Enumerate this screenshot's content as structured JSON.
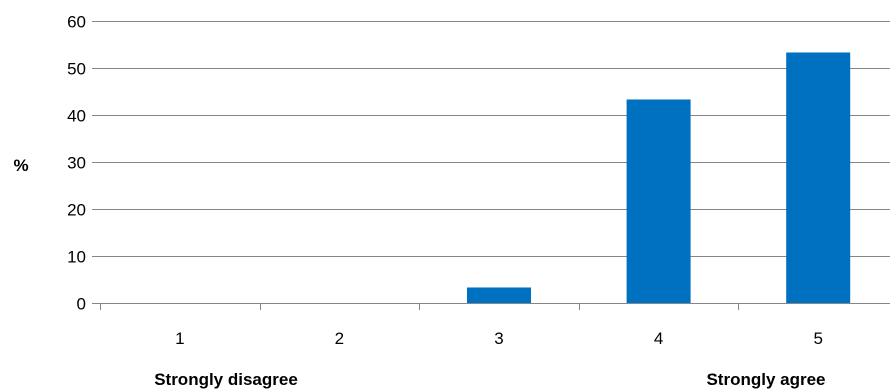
{
  "chart_data": {
    "type": "bar",
    "categories": [
      "1",
      "2",
      "3",
      "4",
      "5"
    ],
    "values": [
      0,
      0,
      3.3,
      43.3,
      53.3
    ],
    "title": "",
    "xlabel": "",
    "ylabel": "%",
    "ylim": [
      0,
      60
    ],
    "yticks": [
      0,
      10,
      20,
      30,
      40,
      50,
      60
    ],
    "grid": true,
    "legend": "none",
    "bar_color": "#0070C0",
    "gridline_color": "#868686",
    "scale_labels": {
      "low": "Strongly disagree",
      "high": "Strongly agree"
    }
  }
}
